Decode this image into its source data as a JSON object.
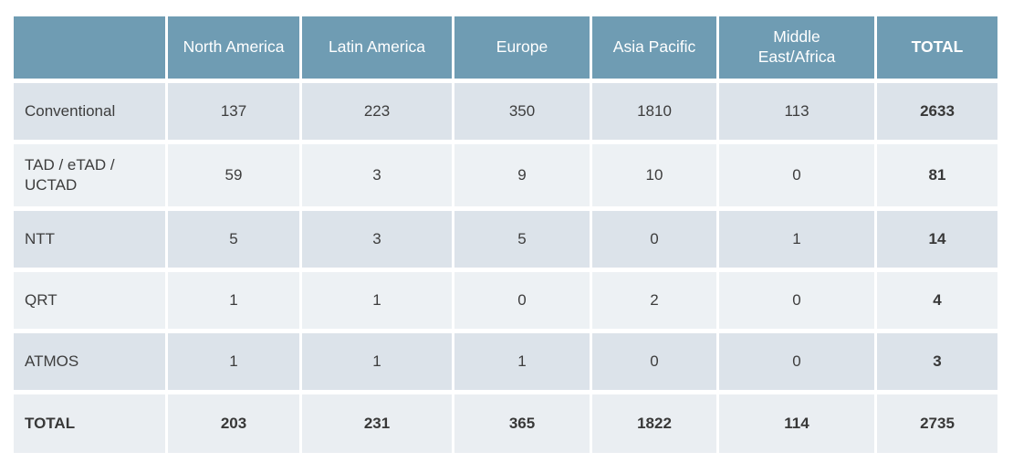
{
  "colors": {
    "header_bg": "#6f9cb3",
    "header_text": "#ffffff",
    "row_dark_bg": "#dce3ea",
    "row_light_bg": "#edf1f4",
    "totals_row_bg": "#eaeef2",
    "body_text": "#3d3d3d",
    "page_bg": "#ffffff"
  },
  "chart_data": {
    "type": "table",
    "title": "",
    "columns": [
      "",
      "North America",
      "Latin America",
      "Europe",
      "Asia Pacific",
      "Middle East/Africa",
      "TOTAL"
    ],
    "rows": [
      {
        "label": "Conventional",
        "values": [
          137,
          223,
          350,
          1810,
          113
        ],
        "total": 2633
      },
      {
        "label": "TAD / eTAD / UCTAD",
        "values": [
          59,
          3,
          9,
          10,
          0
        ],
        "total": 81
      },
      {
        "label": "NTT",
        "values": [
          5,
          3,
          5,
          0,
          1
        ],
        "total": 14
      },
      {
        "label": "QRT",
        "values": [
          1,
          1,
          0,
          2,
          0
        ],
        "total": 4
      },
      {
        "label": "ATMOS",
        "values": [
          1,
          1,
          1,
          0,
          0
        ],
        "total": 3
      }
    ],
    "totals_row": {
      "label": "TOTAL",
      "values": [
        203,
        231,
        365,
        1822,
        114
      ],
      "total": 2735
    },
    "layout": {
      "grid": "white 3px vertical / 5px horizontal gaps",
      "alternating_rows": true
    }
  }
}
